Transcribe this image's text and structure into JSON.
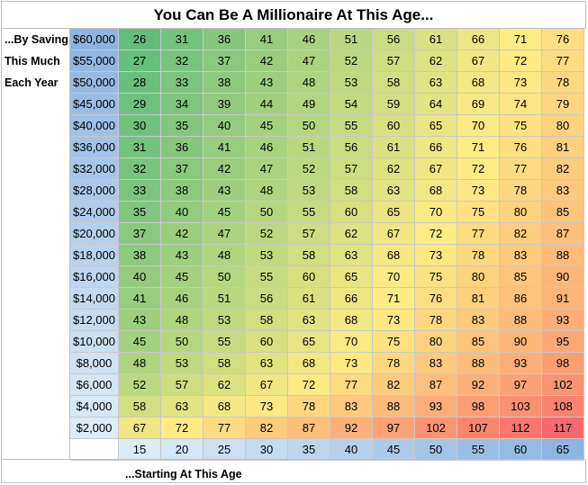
{
  "chart_data": {
    "type": "heatmap",
    "title": "You Can Be A Millionaire At This Age...",
    "ylabel_lines": [
      "...By Saving",
      "This Much",
      "Each Year"
    ],
    "xlabel": "...Starting At This Age",
    "y_categories": [
      "$60,000",
      "$55,000",
      "$50,000",
      "$45,000",
      "$40,000",
      "$36,000",
      "$32,000",
      "$28,000",
      "$24,000",
      "$20,000",
      "$18,000",
      "$16,000",
      "$14,000",
      "$12,000",
      "$10,000",
      "$8,000",
      "$6,000",
      "$4,000",
      "$2,000"
    ],
    "x_categories": [
      "15",
      "20",
      "25",
      "30",
      "35",
      "40",
      "45",
      "50",
      "55",
      "60",
      "65"
    ],
    "values": [
      [
        26,
        31,
        36,
        41,
        46,
        51,
        56,
        61,
        66,
        71,
        76
      ],
      [
        27,
        32,
        37,
        42,
        47,
        52,
        57,
        62,
        67,
        72,
        77
      ],
      [
        28,
        33,
        38,
        43,
        48,
        53,
        58,
        63,
        68,
        73,
        78
      ],
      [
        29,
        34,
        39,
        44,
        49,
        54,
        59,
        64,
        69,
        74,
        79
      ],
      [
        30,
        35,
        40,
        45,
        50,
        55,
        60,
        65,
        70,
        75,
        80
      ],
      [
        31,
        36,
        41,
        46,
        51,
        56,
        61,
        66,
        71,
        76,
        81
      ],
      [
        32,
        37,
        42,
        47,
        52,
        57,
        62,
        67,
        72,
        77,
        82
      ],
      [
        33,
        38,
        43,
        48,
        53,
        58,
        63,
        68,
        73,
        78,
        83
      ],
      [
        35,
        40,
        45,
        50,
        55,
        60,
        65,
        70,
        75,
        80,
        85
      ],
      [
        37,
        42,
        47,
        52,
        57,
        62,
        67,
        72,
        77,
        82,
        87
      ],
      [
        38,
        43,
        48,
        53,
        58,
        63,
        68,
        73,
        78,
        83,
        88
      ],
      [
        40,
        45,
        50,
        55,
        60,
        65,
        70,
        75,
        80,
        85,
        90
      ],
      [
        41,
        46,
        51,
        56,
        61,
        66,
        71,
        76,
        81,
        86,
        91
      ],
      [
        43,
        48,
        53,
        58,
        63,
        68,
        73,
        78,
        83,
        88,
        93
      ],
      [
        45,
        50,
        55,
        60,
        65,
        70,
        75,
        80,
        85,
        90,
        95
      ],
      [
        48,
        53,
        58,
        63,
        68,
        73,
        78,
        83,
        88,
        93,
        98
      ],
      [
        52,
        57,
        62,
        67,
        72,
        77,
        82,
        87,
        92,
        97,
        102
      ],
      [
        58,
        63,
        68,
        73,
        78,
        83,
        88,
        93,
        98,
        103,
        108
      ],
      [
        67,
        72,
        77,
        82,
        87,
        92,
        97,
        102,
        107,
        112,
        117
      ]
    ],
    "color_scale": {
      "low": "#63be7b",
      "mid": "#ffeb84",
      "high": "#f8696b"
    },
    "header_scale": {
      "light": "#ddebf7",
      "dark": "#8db4e2"
    }
  }
}
